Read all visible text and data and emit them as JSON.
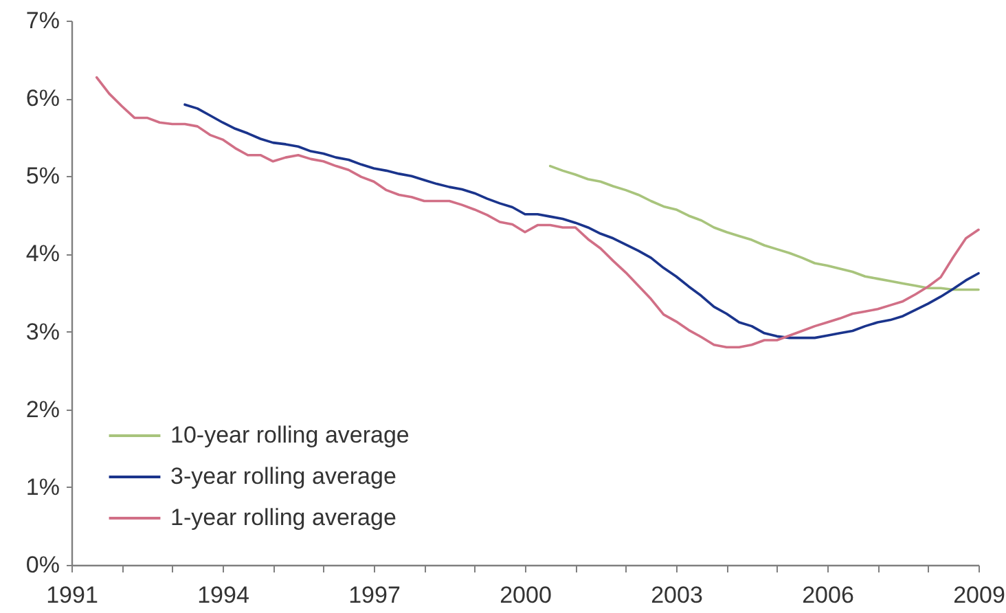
{
  "chart_data": {
    "type": "line",
    "x": [
      1991.5,
      1991.75,
      1992,
      1992.25,
      1992.5,
      1992.75,
      1993,
      1993.25,
      1993.5,
      1993.75,
      1994,
      1994.25,
      1994.5,
      1994.75,
      1995,
      1995.25,
      1995.5,
      1995.75,
      1996,
      1996.25,
      1996.5,
      1996.75,
      1997,
      1997.25,
      1997.5,
      1997.75,
      1998,
      1998.25,
      1998.5,
      1998.75,
      1999,
      1999.25,
      1999.5,
      1999.75,
      2000,
      2000.25,
      2000.5,
      2000.75,
      2001,
      2001.25,
      2001.5,
      2001.75,
      2002,
      2002.25,
      2002.5,
      2002.75,
      2003,
      2003.25,
      2003.5,
      2003.75,
      2004,
      2004.25,
      2004.5,
      2004.75,
      2005,
      2005.25,
      2005.5,
      2005.75,
      2006,
      2006.25,
      2006.5,
      2006.75,
      2007,
      2007.25,
      2007.5,
      2007.75,
      2008,
      2008.25,
      2008.5,
      2008.75,
      2009
    ],
    "series": [
      {
        "name": "10-year rolling average",
        "color": "#a8c47c",
        "values": [
          null,
          null,
          null,
          null,
          null,
          null,
          null,
          null,
          null,
          null,
          null,
          null,
          null,
          null,
          null,
          null,
          null,
          null,
          null,
          null,
          null,
          null,
          null,
          null,
          null,
          null,
          null,
          null,
          null,
          null,
          null,
          null,
          null,
          null,
          null,
          null,
          5.13,
          5.07,
          5.02,
          4.96,
          4.93,
          4.87,
          4.82,
          4.76,
          4.68,
          4.61,
          4.57,
          4.49,
          4.43,
          4.34,
          4.28,
          4.23,
          4.18,
          4.11,
          4.06,
          4.01,
          3.95,
          3.88,
          3.85,
          3.81,
          3.77,
          3.71,
          3.68,
          3.65,
          3.62,
          3.59,
          3.56,
          3.56,
          3.54,
          3.54,
          3.54
        ]
      },
      {
        "name": "3-year rolling average",
        "color": "#1a348c",
        "values": [
          null,
          null,
          null,
          null,
          null,
          null,
          null,
          5.92,
          5.87,
          5.78,
          5.69,
          5.61,
          5.55,
          5.48,
          5.43,
          5.41,
          5.38,
          5.32,
          5.29,
          5.24,
          5.21,
          5.15,
          5.1,
          5.07,
          5.03,
          5.0,
          4.95,
          4.9,
          4.86,
          4.83,
          4.78,
          4.71,
          4.65,
          4.6,
          4.51,
          4.51,
          4.48,
          4.45,
          4.4,
          4.34,
          4.26,
          4.2,
          4.12,
          4.04,
          3.95,
          3.82,
          3.71,
          3.58,
          3.46,
          3.32,
          3.23,
          3.12,
          3.07,
          2.98,
          2.94,
          2.92,
          2.92,
          2.92,
          2.95,
          2.98,
          3.01,
          3.07,
          3.12,
          3.15,
          3.2,
          3.28,
          3.36,
          3.45,
          3.55,
          3.66,
          3.75
        ]
      },
      {
        "name": "1-year rolling average",
        "color": "#d16f86",
        "values": [
          6.27,
          6.06,
          5.9,
          5.75,
          5.75,
          5.69,
          5.67,
          5.67,
          5.64,
          5.53,
          5.47,
          5.36,
          5.27,
          5.27,
          5.19,
          5.24,
          5.27,
          5.22,
          5.19,
          5.13,
          5.08,
          4.99,
          4.93,
          4.82,
          4.76,
          4.73,
          4.68,
          4.68,
          4.68,
          4.63,
          4.57,
          4.5,
          4.41,
          4.38,
          4.28,
          4.37,
          4.37,
          4.34,
          4.34,
          4.19,
          4.07,
          3.91,
          3.76,
          3.59,
          3.42,
          3.22,
          3.13,
          3.02,
          2.93,
          2.83,
          2.8,
          2.8,
          2.83,
          2.89,
          2.89,
          2.95,
          3.01,
          3.07,
          3.12,
          3.17,
          3.23,
          3.26,
          3.29,
          3.34,
          3.39,
          3.48,
          3.58,
          3.7,
          3.96,
          4.2,
          4.31
        ]
      }
    ],
    "xlim": [
      1991,
      2009
    ],
    "xticks": [
      1991,
      {
        "value": 1992,
        "label": null
      },
      {
        "value": 1993,
        "label": null
      },
      1994,
      {
        "value": 1995,
        "label": null
      },
      {
        "value": 1996,
        "label": null
      },
      1997,
      {
        "value": 1998,
        "label": null
      },
      {
        "value": 1999,
        "label": null
      },
      2000,
      {
        "value": 2001,
        "label": null
      },
      {
        "value": 2002,
        "label": null
      },
      2003,
      {
        "value": 2004,
        "label": null
      },
      {
        "value": 2005,
        "label": null
      },
      2006,
      {
        "value": 2007,
        "label": null
      },
      {
        "value": 2008,
        "label": null
      },
      2009
    ],
    "ylim": [
      0,
      7
    ],
    "yticks": [
      {
        "value": 0,
        "label": "0%"
      },
      {
        "value": 1,
        "label": "1%"
      },
      {
        "value": 2,
        "label": "2%"
      },
      {
        "value": 3,
        "label": "3%"
      },
      {
        "value": 4,
        "label": "4%"
      },
      {
        "value": 5,
        "label": "5%"
      },
      {
        "value": 6,
        "label": "6%"
      },
      {
        "value": 7,
        "label": "7%"
      }
    ],
    "legend": "bottom left"
  }
}
